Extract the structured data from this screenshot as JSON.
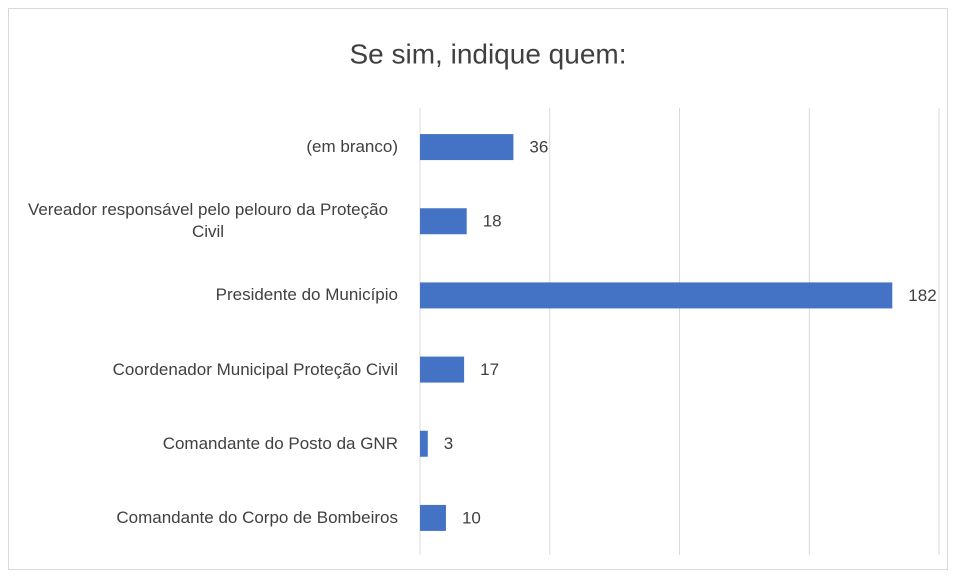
{
  "chart_data": {
    "type": "bar",
    "orientation": "horizontal",
    "title": "Se sim, indique quem:",
    "categories": [
      "(em branco)",
      "Vereador responsável pelo pelouro da Proteção Civil",
      "Presidente do Município",
      "Coordenador Municipal Proteção Civil",
      "Comandante do Posto da GNR",
      "Comandante do Corpo de Bombeiros"
    ],
    "values": [
      36,
      18,
      182,
      17,
      3,
      10
    ],
    "color": "#4472c4",
    "xlim": [
      0,
      200
    ],
    "xticks": [
      0,
      50,
      100,
      150,
      200
    ],
    "grid": true
  }
}
